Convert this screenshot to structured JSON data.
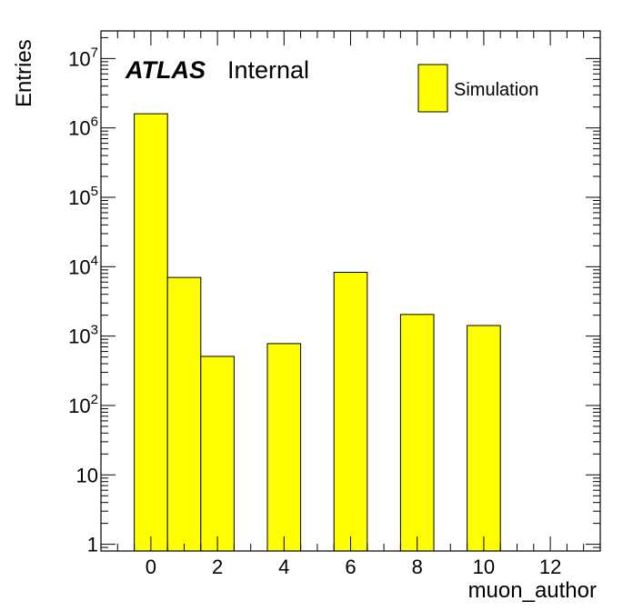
{
  "chart_data": {
    "type": "bar",
    "xlabel": "muon_author",
    "ylabel": "Entries",
    "xlim": [
      -1.5,
      13.5
    ],
    "ylim": [
      0.8,
      25000000
    ],
    "log_y": true,
    "grid": false,
    "bin_width": 1,
    "x_ticks": [
      0,
      2,
      4,
      6,
      8,
      10,
      12
    ],
    "y_ticks": [
      {
        "value": 1,
        "base": "1",
        "exp": ""
      },
      {
        "value": 10,
        "base": "10",
        "exp": ""
      },
      {
        "value": 100,
        "base": "10",
        "exp": "2"
      },
      {
        "value": 1000,
        "base": "10",
        "exp": "3"
      },
      {
        "value": 10000,
        "base": "10",
        "exp": "4"
      },
      {
        "value": 100000,
        "base": "10",
        "exp": "5"
      },
      {
        "value": 1000000,
        "base": "10",
        "exp": "6"
      },
      {
        "value": 10000000,
        "base": "10",
        "exp": "7"
      }
    ],
    "bins": [
      {
        "x": 0,
        "value": 1600000
      },
      {
        "x": 1,
        "value": 7000
      },
      {
        "x": 2,
        "value": 510
      },
      {
        "x": 4,
        "value": 780
      },
      {
        "x": 6,
        "value": 8300
      },
      {
        "x": 8,
        "value": 2050
      },
      {
        "x": 10,
        "value": 1420
      }
    ],
    "series": [
      {
        "name": "Simulation",
        "color": "#ffff00"
      }
    ],
    "legend_position": "top-right",
    "label_main": "ATLAS",
    "label_sub": "Internal"
  }
}
